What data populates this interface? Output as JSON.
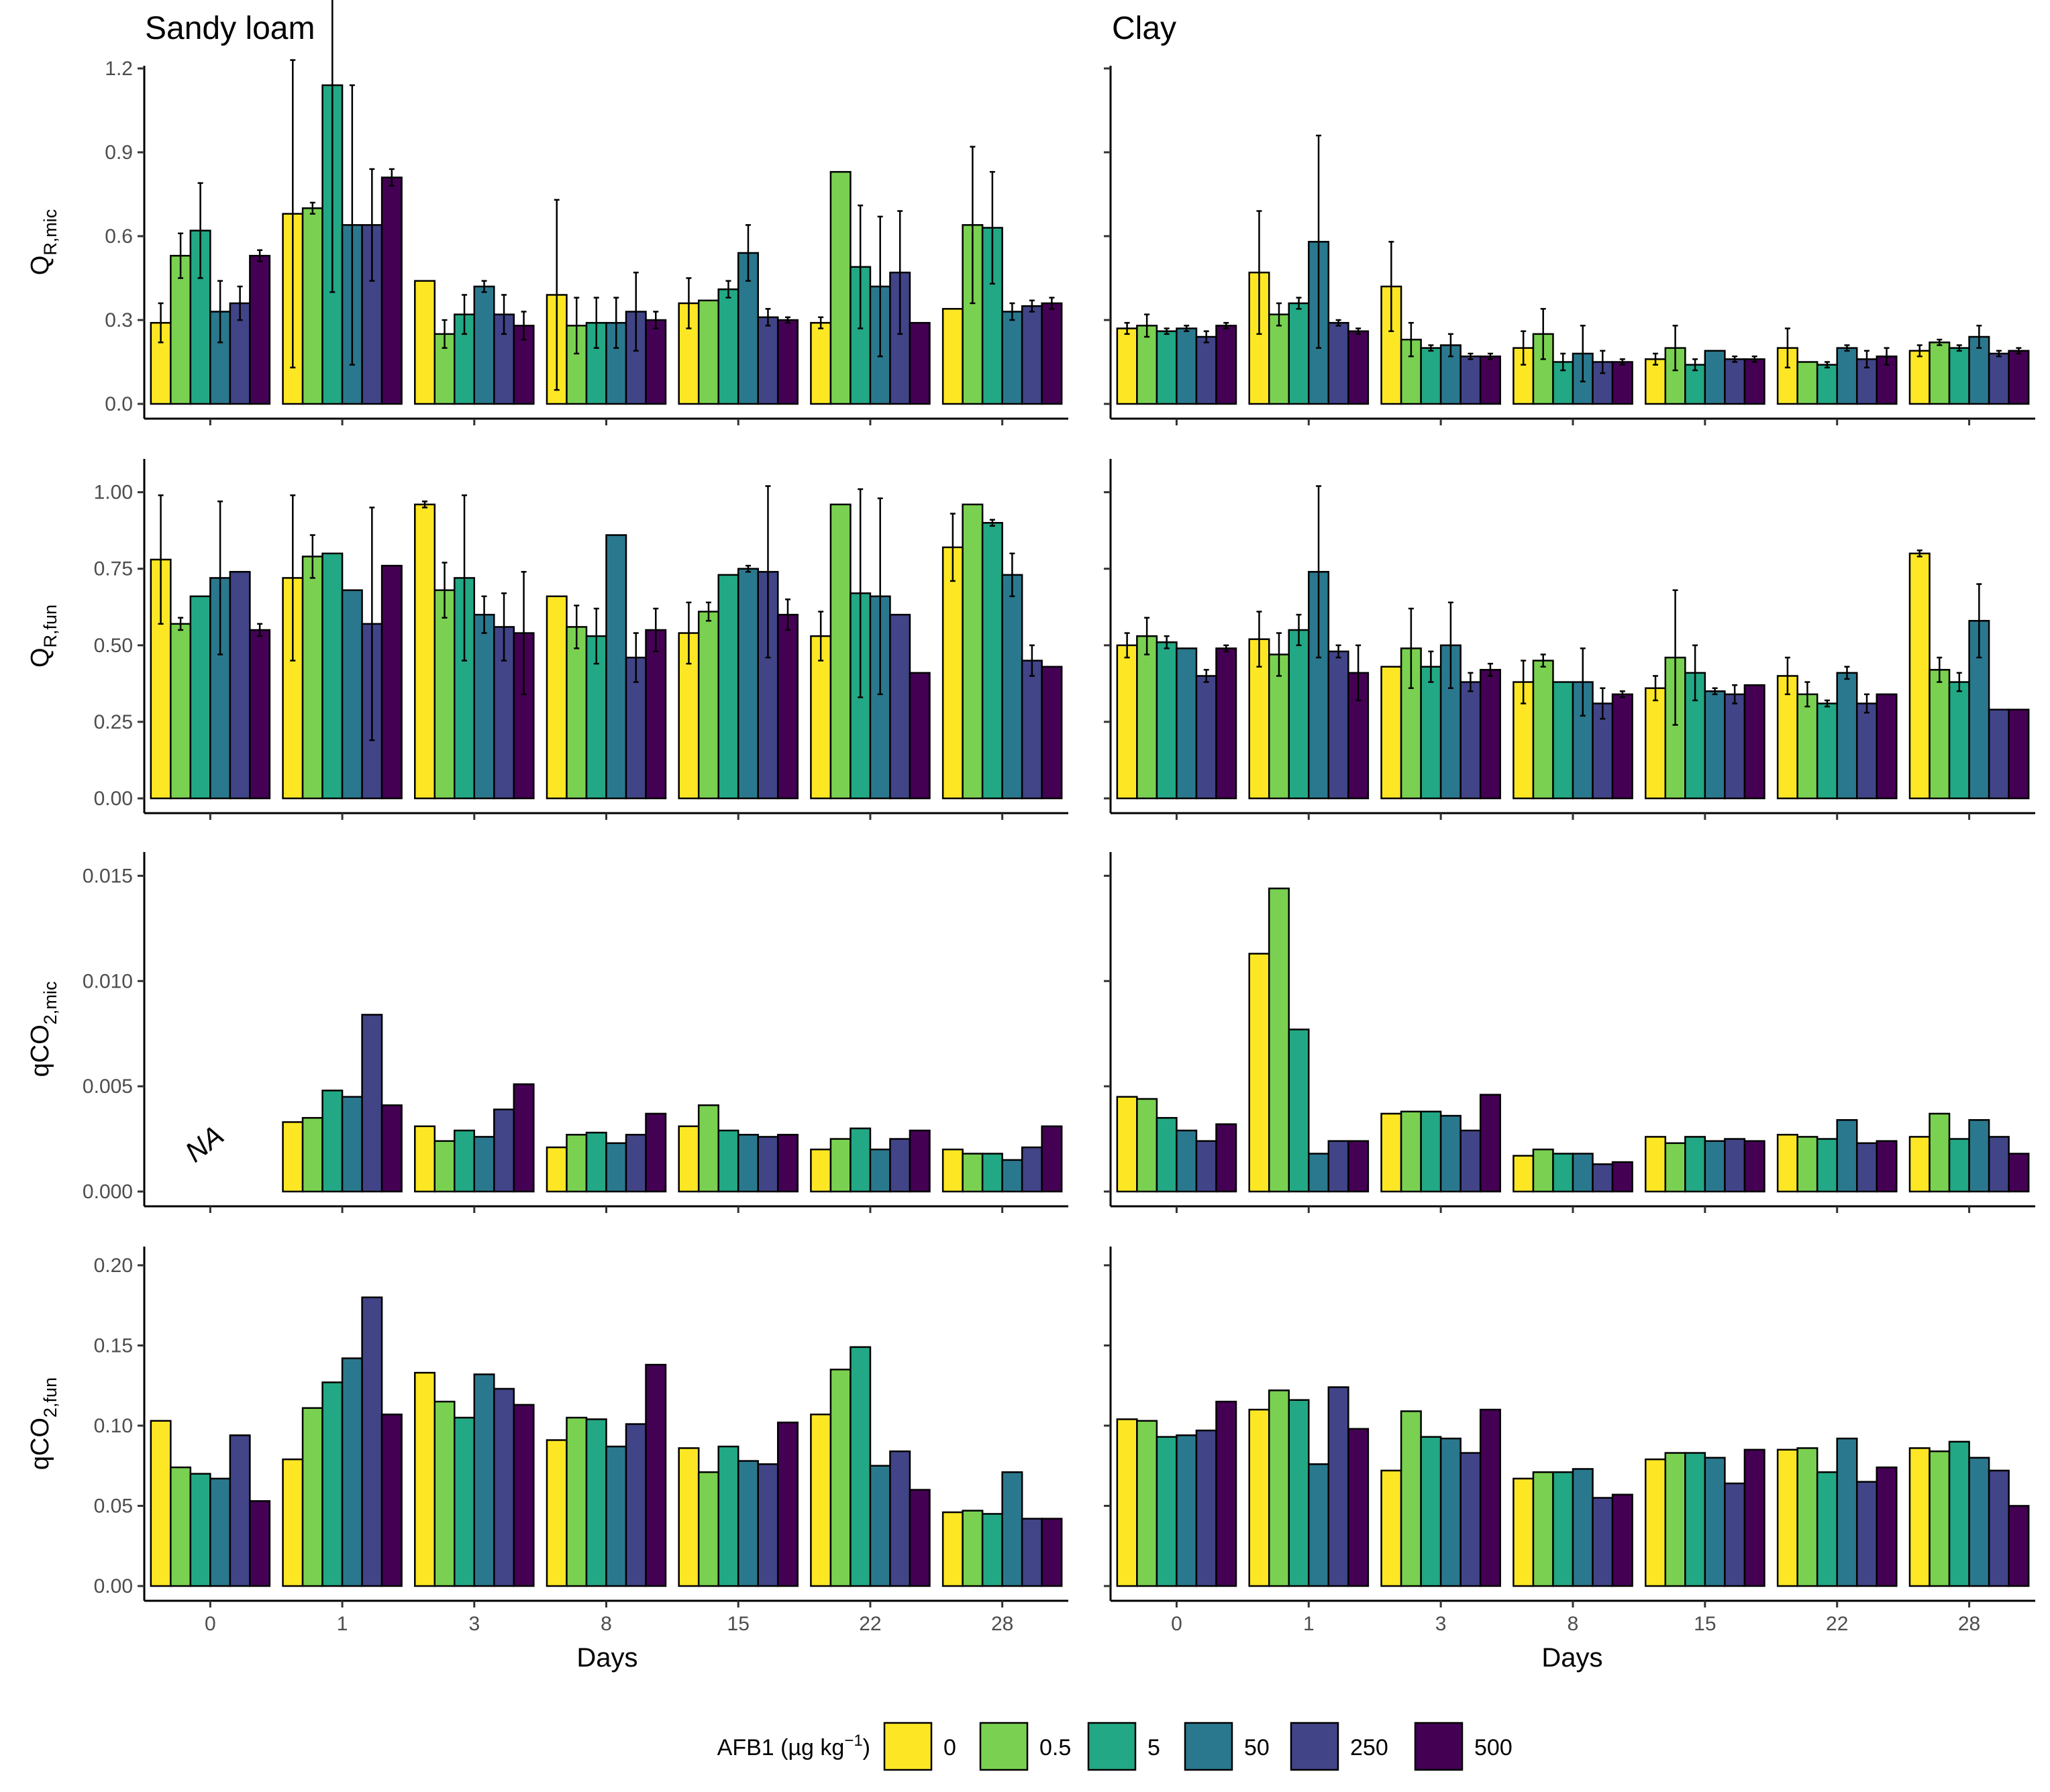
{
  "chart_data": {
    "type": "bar",
    "columns": [
      "Sandy loam",
      "Clay"
    ],
    "x_title": "Days",
    "categories": [
      "0",
      "1",
      "3",
      "8",
      "15",
      "22",
      "28"
    ],
    "legend": {
      "title": "AFB1 (µg kg",
      "title_sup": "−1",
      "title_end": ")",
      "position": "bottom",
      "levels": [
        "0",
        "0.5",
        "5",
        "50",
        "250",
        "500"
      ],
      "colors": [
        "#FDE725",
        "#7AD151",
        "#22A884",
        "#2A788E",
        "#414487",
        "#440154"
      ]
    },
    "panels": [
      {
        "row": 0,
        "col": 0,
        "ylabel_main": "Q",
        "ylabel_sub": "R,mic",
        "ylim": [
          0,
          1.2
        ],
        "yticks": [
          "0.0",
          "0.3",
          "0.6",
          "0.9",
          "1.2"
        ],
        "ytick_values": [
          0,
          0.3,
          0.6,
          0.9,
          1.2
        ],
        "values": [
          [
            0.29,
            0.53,
            0.62,
            0.33,
            0.36,
            0.53
          ],
          [
            0.68,
            0.7,
            1.14,
            0.64,
            0.64,
            0.81
          ],
          [
            0.44,
            0.25,
            0.32,
            0.42,
            0.32,
            0.28
          ],
          [
            0.39,
            0.28,
            0.29,
            0.29,
            0.33,
            0.3
          ],
          [
            0.36,
            0.37,
            0.41,
            0.54,
            0.31,
            0.3
          ],
          [
            0.29,
            0.83,
            0.49,
            0.42,
            0.47,
            0.29
          ],
          [
            0.34,
            0.64,
            0.63,
            0.33,
            0.35,
            0.36
          ]
        ],
        "errors": [
          [
            0.07,
            0.08,
            0.17,
            0.11,
            0.06,
            0.02
          ],
          [
            0.55,
            0.02,
            0.74,
            0.5,
            0.2,
            0.03
          ],
          [
            0.0,
            0.05,
            0.07,
            0.02,
            0.07,
            0.05
          ],
          [
            0.34,
            0.1,
            0.09,
            0.09,
            0.14,
            0.03
          ],
          [
            0.09,
            0.0,
            0.03,
            0.1,
            0.03,
            0.01
          ],
          [
            0.02,
            0.0,
            0.22,
            0.25,
            0.22,
            0.0
          ],
          [
            0.0,
            0.28,
            0.2,
            0.03,
            0.02,
            0.02
          ]
        ]
      },
      {
        "row": 0,
        "col": 1,
        "ylim": [
          0,
          1.2
        ],
        "ytick_values": [
          0,
          0.3,
          0.6,
          0.9,
          1.2
        ],
        "values": [
          [
            0.27,
            0.28,
            0.26,
            0.27,
            0.24,
            0.28
          ],
          [
            0.47,
            0.32,
            0.36,
            0.58,
            0.29,
            0.26
          ],
          [
            0.42,
            0.23,
            0.2,
            0.21,
            0.17,
            0.17
          ],
          [
            0.2,
            0.25,
            0.15,
            0.18,
            0.15,
            0.15
          ],
          [
            0.16,
            0.2,
            0.14,
            0.19,
            0.16,
            0.16
          ],
          [
            0.2,
            0.15,
            0.14,
            0.2,
            0.16,
            0.17
          ],
          [
            0.19,
            0.22,
            0.2,
            0.24,
            0.18,
            0.19
          ]
        ],
        "errors": [
          [
            0.02,
            0.04,
            0.01,
            0.01,
            0.02,
            0.01
          ],
          [
            0.22,
            0.04,
            0.02,
            0.38,
            0.01,
            0.01
          ],
          [
            0.16,
            0.06,
            0.01,
            0.04,
            0.01,
            0.01
          ],
          [
            0.06,
            0.09,
            0.03,
            0.1,
            0.04,
            0.01
          ],
          [
            0.02,
            0.08,
            0.02,
            0.0,
            0.01,
            0.01
          ],
          [
            0.07,
            0.0,
            0.01,
            0.01,
            0.03,
            0.03
          ],
          [
            0.02,
            0.01,
            0.01,
            0.04,
            0.01,
            0.01
          ]
        ]
      },
      {
        "row": 1,
        "col": 0,
        "ylabel_main": "Q",
        "ylabel_sub": "R,fun",
        "ylim": [
          0,
          1.1
        ],
        "yticks": [
          "0.00",
          "0.25",
          "0.50",
          "0.75",
          "1.00"
        ],
        "ytick_values": [
          0,
          0.25,
          0.5,
          0.75,
          1.0
        ],
        "values": [
          [
            0.78,
            0.57,
            0.66,
            0.72,
            0.74,
            0.55
          ],
          [
            0.72,
            0.79,
            0.8,
            0.68,
            0.57,
            0.76
          ],
          [
            0.96,
            0.68,
            0.72,
            0.6,
            0.56,
            0.54
          ],
          [
            0.66,
            0.56,
            0.53,
            0.86,
            0.46,
            0.55
          ],
          [
            0.54,
            0.61,
            0.73,
            0.75,
            0.74,
            0.6
          ],
          [
            0.53,
            0.96,
            0.67,
            0.66,
            0.6,
            0.41
          ],
          [
            0.82,
            0.96,
            0.9,
            0.73,
            0.45,
            0.43
          ]
        ],
        "errors": [
          [
            0.21,
            0.02,
            0.0,
            0.25,
            0.0,
            0.02
          ],
          [
            0.27,
            0.07,
            0.0,
            0.0,
            0.38,
            0.0
          ],
          [
            0.01,
            0.09,
            0.27,
            0.06,
            0.11,
            0.2
          ],
          [
            0.0,
            0.07,
            0.09,
            0.0,
            0.08,
            0.07
          ],
          [
            0.1,
            0.03,
            0.0,
            0.01,
            0.28,
            0.05
          ],
          [
            0.08,
            0.0,
            0.34,
            0.32,
            0.0,
            0.0
          ],
          [
            0.11,
            0.0,
            0.01,
            0.07,
            0.05,
            0.0
          ]
        ]
      },
      {
        "row": 1,
        "col": 1,
        "ylim": [
          0,
          1.1
        ],
        "ytick_values": [
          0,
          0.25,
          0.5,
          0.75,
          1.0
        ],
        "values": [
          [
            0.5,
            0.53,
            0.51,
            0.49,
            0.4,
            0.49
          ],
          [
            0.52,
            0.47,
            0.55,
            0.74,
            0.48,
            0.41
          ],
          [
            0.43,
            0.49,
            0.43,
            0.5,
            0.38,
            0.42
          ],
          [
            0.38,
            0.45,
            0.38,
            0.38,
            0.31,
            0.34
          ],
          [
            0.36,
            0.46,
            0.41,
            0.35,
            0.34,
            0.37
          ],
          [
            0.4,
            0.34,
            0.31,
            0.41,
            0.31,
            0.34
          ],
          [
            0.8,
            0.42,
            0.38,
            0.58,
            0.29,
            0.29
          ]
        ],
        "errors": [
          [
            0.04,
            0.06,
            0.02,
            0.0,
            0.02,
            0.01
          ],
          [
            0.09,
            0.07,
            0.05,
            0.28,
            0.02,
            0.09
          ],
          [
            0.0,
            0.13,
            0.05,
            0.14,
            0.03,
            0.02
          ],
          [
            0.07,
            0.02,
            0.0,
            0.11,
            0.05,
            0.01
          ],
          [
            0.04,
            0.22,
            0.09,
            0.01,
            0.03,
            0.0
          ],
          [
            0.06,
            0.04,
            0.01,
            0.02,
            0.03,
            0.0
          ],
          [
            0.01,
            0.04,
            0.03,
            0.12,
            0.0,
            0.0
          ]
        ]
      },
      {
        "row": 2,
        "col": 0,
        "ylabel_main": "qCO",
        "ylabel_sub": "2,mic",
        "ylim": [
          0,
          0.016
        ],
        "yticks": [
          "0.000",
          "0.005",
          "0.010",
          "0.015"
        ],
        "ytick_values": [
          0,
          0.005,
          0.01,
          0.015
        ],
        "na_label": "NA",
        "values": [
          null,
          [
            0.0033,
            0.0035,
            0.0048,
            0.0045,
            0.0084,
            0.0041
          ],
          [
            0.0031,
            0.0024,
            0.0029,
            0.0026,
            0.0039,
            0.0051
          ],
          [
            0.0021,
            0.0027,
            0.0028,
            0.0023,
            0.0027,
            0.0037
          ],
          [
            0.0031,
            0.0041,
            0.0029,
            0.0027,
            0.0026,
            0.0027
          ],
          [
            0.002,
            0.0025,
            0.003,
            0.002,
            0.0025,
            0.0029
          ],
          [
            0.002,
            0.0018,
            0.0018,
            0.0015,
            0.0021,
            0.0031
          ]
        ]
      },
      {
        "row": 2,
        "col": 1,
        "ylim": [
          0,
          0.016
        ],
        "ytick_values": [
          0,
          0.005,
          0.01,
          0.015
        ],
        "values": [
          [
            0.0045,
            0.0044,
            0.0035,
            0.0029,
            0.0024,
            0.0032
          ],
          [
            0.0113,
            0.0144,
            0.0077,
            0.0018,
            0.0024,
            0.0024
          ],
          [
            0.0037,
            0.0038,
            0.0038,
            0.0036,
            0.0029,
            0.0046
          ],
          [
            0.0017,
            0.002,
            0.0018,
            0.0018,
            0.0013,
            0.0014
          ],
          [
            0.0026,
            0.0023,
            0.0026,
            0.0024,
            0.0025,
            0.0024
          ],
          [
            0.0027,
            0.0026,
            0.0025,
            0.0034,
            0.0023,
            0.0024
          ],
          [
            0.0026,
            0.0037,
            0.0025,
            0.0034,
            0.0026,
            0.0018
          ]
        ]
      },
      {
        "row": 3,
        "col": 0,
        "ylabel_main": "qCO",
        "ylabel_sub": "2,fun",
        "ylim": [
          0,
          0.21
        ],
        "yticks": [
          "0.00",
          "0.05",
          "0.10",
          "0.15",
          "0.20"
        ],
        "ytick_values": [
          0,
          0.05,
          0.1,
          0.15,
          0.2
        ],
        "values": [
          [
            0.103,
            0.074,
            0.07,
            0.067,
            0.094,
            0.053
          ],
          [
            0.079,
            0.111,
            0.127,
            0.142,
            0.18,
            0.107
          ],
          [
            0.133,
            0.115,
            0.105,
            0.132,
            0.123,
            0.113
          ],
          [
            0.091,
            0.105,
            0.104,
            0.087,
            0.101,
            0.138
          ],
          [
            0.086,
            0.071,
            0.087,
            0.078,
            0.076,
            0.102
          ],
          [
            0.107,
            0.135,
            0.149,
            0.075,
            0.084,
            0.06
          ],
          [
            0.046,
            0.047,
            0.045,
            0.071,
            0.042,
            0.042
          ]
        ]
      },
      {
        "row": 3,
        "col": 1,
        "ylim": [
          0,
          0.21
        ],
        "ytick_values": [
          0,
          0.05,
          0.1,
          0.15,
          0.2
        ],
        "values": [
          [
            0.104,
            0.103,
            0.093,
            0.094,
            0.097,
            0.115
          ],
          [
            0.11,
            0.122,
            0.116,
            0.076,
            0.124,
            0.098
          ],
          [
            0.072,
            0.109,
            0.093,
            0.092,
            0.083,
            0.11
          ],
          [
            0.067,
            0.071,
            0.071,
            0.073,
            0.055,
            0.057
          ],
          [
            0.079,
            0.083,
            0.083,
            0.08,
            0.064,
            0.085
          ],
          [
            0.085,
            0.086,
            0.071,
            0.092,
            0.065,
            0.074
          ],
          [
            0.086,
            0.084,
            0.09,
            0.08,
            0.072,
            0.05
          ]
        ]
      }
    ]
  }
}
